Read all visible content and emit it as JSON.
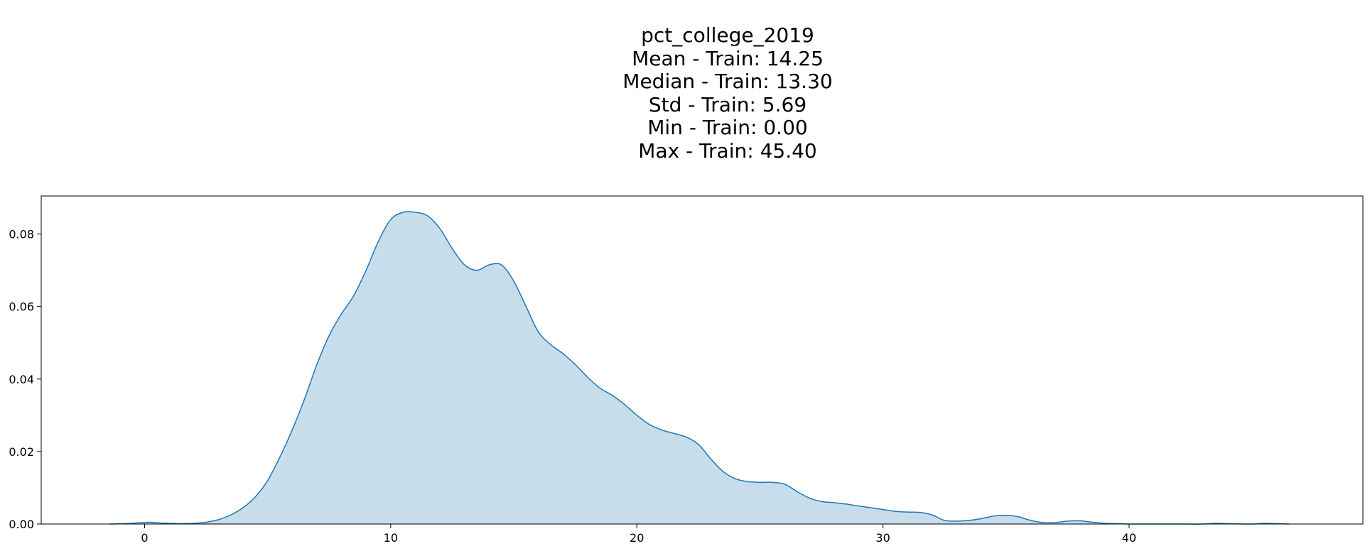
{
  "chart_data": {
    "type": "area",
    "title_lines": [
      "pct_college_2019",
      "Mean - Train: 14.25",
      "Median - Train: 13.30",
      "Std - Train: 5.69",
      "Min - Train: 0.00",
      "Max - Train: 45.40"
    ],
    "xlabel": "",
    "ylabel": "",
    "xlim": [
      -4.2,
      49.5
    ],
    "ylim": [
      0,
      0.0905
    ],
    "x_ticks": [
      0,
      10,
      20,
      30,
      40
    ],
    "y_ticks": [
      0.0,
      0.02,
      0.04,
      0.06,
      0.08
    ],
    "x_tick_labels": [
      "0",
      "10",
      "20",
      "30",
      "40"
    ],
    "y_tick_labels": [
      "0.00",
      "0.02",
      "0.04",
      "0.06",
      "0.08"
    ],
    "grid": false,
    "line_color": "#1f77b4",
    "fill_color": "#1f77b4",
    "fill_alpha": 0.25,
    "series": [
      {
        "x": [
          -1.4,
          -0.5,
          0.2,
          0.6,
          1.0,
          1.5,
          2.0,
          2.5,
          3.0,
          3.5,
          4.0,
          4.5,
          5.0,
          5.5,
          6.0,
          6.5,
          7.0,
          7.5,
          8.0,
          8.5,
          9.0,
          9.5,
          10.0,
          10.5,
          11.0,
          11.5,
          12.0,
          12.5,
          13.0,
          13.5,
          14.0,
          14.5,
          15.0,
          15.5,
          16.0,
          16.5,
          17.0,
          17.5,
          18.0,
          18.5,
          19.0,
          19.5,
          20.0,
          20.5,
          21.0,
          21.5,
          22.0,
          22.5,
          23.0,
          23.5,
          24.0,
          24.5,
          25.0,
          25.5,
          26.0,
          26.5,
          27.0,
          27.5,
          28.0,
          28.5,
          29.0,
          29.5,
          30.0,
          30.5,
          31.0,
          31.5,
          32.0,
          32.5,
          33.0,
          33.5,
          34.0,
          34.5,
          35.0,
          35.5,
          36.0,
          36.5,
          37.0,
          37.5,
          38.0,
          38.5,
          39.0,
          39.5,
          40.0,
          41.0,
          42.0,
          43.0,
          43.5,
          44.0,
          45.0,
          45.5,
          46.5
        ],
        "y": [
          0.0,
          0.0002,
          0.0005,
          0.0003,
          0.0002,
          0.0001,
          0.0002,
          0.0005,
          0.0012,
          0.0025,
          0.0045,
          0.0075,
          0.012,
          0.0185,
          0.026,
          0.0345,
          0.044,
          0.052,
          0.058,
          0.063,
          0.07,
          0.078,
          0.084,
          0.086,
          0.086,
          0.085,
          0.0815,
          0.076,
          0.0715,
          0.07,
          0.0715,
          0.0715,
          0.067,
          0.06,
          0.053,
          0.0495,
          0.047,
          0.044,
          0.0405,
          0.0375,
          0.0355,
          0.033,
          0.03,
          0.0275,
          0.026,
          0.025,
          0.024,
          0.022,
          0.018,
          0.0145,
          0.0125,
          0.0117,
          0.0115,
          0.0115,
          0.011,
          0.009,
          0.0072,
          0.0062,
          0.0059,
          0.0055,
          0.005,
          0.0045,
          0.004,
          0.0035,
          0.0033,
          0.0032,
          0.0025,
          0.001,
          0.0008,
          0.001,
          0.0015,
          0.0022,
          0.0024,
          0.002,
          0.001,
          0.0004,
          0.0004,
          0.0008,
          0.0009,
          0.0005,
          0.0002,
          0.0001,
          0.0,
          0.0,
          0.0,
          0.0,
          0.0002,
          0.0001,
          0.0,
          0.0002,
          0.0
        ]
      }
    ]
  }
}
